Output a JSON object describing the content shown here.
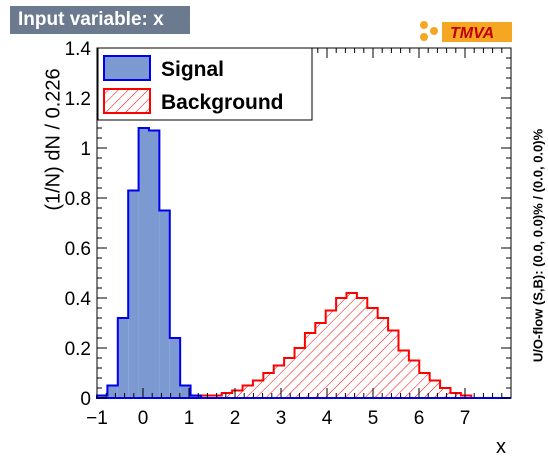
{
  "header": {
    "title": "Input variable: x",
    "logo_text": "TMVA"
  },
  "axis_labels": {
    "y": "(1/N) dN / 0.226",
    "y_right": "U/O-flow (S,B): (0.0, 0.0)% / (0.0, 0.0)%",
    "x": "x"
  },
  "colors": {
    "signal_fill": "#7d99d1",
    "signal_line": "#0000ee",
    "background_line": "#ff0000",
    "title_bg": "#6b7a8f",
    "logo_orange": "#f5a623"
  },
  "chart_data": {
    "type": "histogram",
    "xlim": [
      -1.0,
      8.0
    ],
    "ylim": [
      0,
      1.4
    ],
    "bin_width": 0.226,
    "x_ticks": [
      "−1",
      "0",
      "1",
      "2",
      "3",
      "4",
      "5",
      "6",
      "7"
    ],
    "x_tick_values": [
      -1,
      0,
      1,
      2,
      3,
      4,
      5,
      6,
      7
    ],
    "y_ticks": [
      "0",
      "0.2",
      "0.4",
      "0.6",
      "0.8",
      "1",
      "1.2",
      "1.4"
    ],
    "y_tick_values": [
      0,
      0.2,
      0.4,
      0.6,
      0.8,
      1.0,
      1.2,
      1.4
    ],
    "legend": {
      "position": "top-left"
    },
    "series": [
      {
        "name": "Signal",
        "style": "solid",
        "values": [
          0.01,
          0.05,
          0.32,
          0.83,
          1.08,
          1.07,
          0.75,
          0.24,
          0.05,
          0.01,
          0.0,
          0.0,
          0.0,
          0.0,
          0.0,
          0.0,
          0.0,
          0.0,
          0.0,
          0.0,
          0.0,
          0.0,
          0.0,
          0.0,
          0.0,
          0.0,
          0.0,
          0.0,
          0.0,
          0.0,
          0.0,
          0.0,
          0.0,
          0.0,
          0.0,
          0.0,
          0.0,
          0.0,
          0.0,
          0.0
        ]
      },
      {
        "name": "Background",
        "style": "hatched",
        "values": [
          0.0,
          0.0,
          0.0,
          0.0,
          0.0,
          0.0,
          0.0,
          0.0,
          0.0,
          0.0,
          0.01,
          0.01,
          0.02,
          0.03,
          0.05,
          0.07,
          0.1,
          0.13,
          0.16,
          0.2,
          0.26,
          0.3,
          0.35,
          0.4,
          0.42,
          0.4,
          0.36,
          0.32,
          0.27,
          0.19,
          0.15,
          0.1,
          0.07,
          0.04,
          0.02,
          0.01,
          0.0,
          0.0,
          0.0,
          0.0
        ]
      }
    ]
  }
}
